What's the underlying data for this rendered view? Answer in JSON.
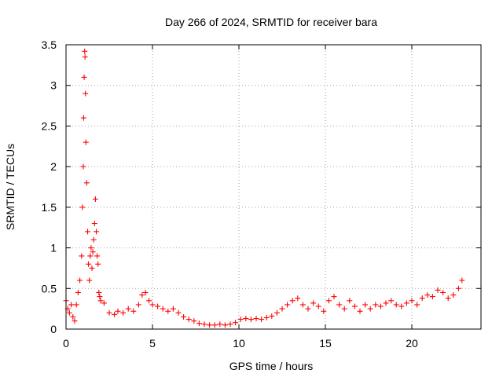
{
  "chart_data": {
    "type": "scatter",
    "title": "Day 266 of 2024, SRMTID for receiver bara",
    "xlabel": "GPS time / hours",
    "ylabel": "SRMTID / TECUs",
    "xlim": [
      0,
      24
    ],
    "ylim": [
      0,
      3.5
    ],
    "x_ticks": [
      0,
      5,
      10,
      15,
      20
    ],
    "x_tick_labels": [
      "0",
      "5",
      "10",
      "15",
      "20"
    ],
    "y_ticks": [
      0,
      0.5,
      1,
      1.5,
      2,
      2.5,
      3,
      3.5
    ],
    "y_tick_labels": [
      "0",
      "0.5",
      "1",
      "1.5",
      "2",
      "2.5",
      "3",
      "3.5"
    ],
    "grid": true,
    "marker": "+",
    "color": "#ff0000",
    "series": [
      {
        "name": "SRMTID",
        "x": [
          0.0,
          0.1,
          0.2,
          0.3,
          0.4,
          0.5,
          0.6,
          0.7,
          0.8,
          0.9,
          0.95,
          1.0,
          1.02,
          1.05,
          1.08,
          1.1,
          1.12,
          1.15,
          1.2,
          1.25,
          1.3,
          1.35,
          1.4,
          1.45,
          1.5,
          1.55,
          1.6,
          1.65,
          1.7,
          1.75,
          1.8,
          1.85,
          1.9,
          1.95,
          2.0,
          2.2,
          2.5,
          2.8,
          3.0,
          3.3,
          3.6,
          3.9,
          4.2,
          4.4,
          4.6,
          4.8,
          5.0,
          5.3,
          5.6,
          5.9,
          6.2,
          6.5,
          6.8,
          7.1,
          7.4,
          7.7,
          8.0,
          8.3,
          8.6,
          8.9,
          9.2,
          9.5,
          9.8,
          10.1,
          10.4,
          10.7,
          11.0,
          11.3,
          11.6,
          11.9,
          12.2,
          12.5,
          12.8,
          13.1,
          13.4,
          13.7,
          14.0,
          14.3,
          14.6,
          14.9,
          15.2,
          15.5,
          15.8,
          16.1,
          16.4,
          16.7,
          17.0,
          17.3,
          17.6,
          17.9,
          18.2,
          18.5,
          18.8,
          19.1,
          19.4,
          19.7,
          20.0,
          20.3,
          20.6,
          20.9,
          21.2,
          21.5,
          21.8,
          22.1,
          22.4,
          22.7,
          22.9
        ],
        "y": [
          0.35,
          0.25,
          0.2,
          0.3,
          0.15,
          0.1,
          0.3,
          0.45,
          0.6,
          0.9,
          1.5,
          2.0,
          2.6,
          3.1,
          3.42,
          3.35,
          2.9,
          2.3,
          1.8,
          1.2,
          0.8,
          0.6,
          0.9,
          1.0,
          0.75,
          0.95,
          1.1,
          1.3,
          1.6,
          1.2,
          0.9,
          0.8,
          0.45,
          0.4,
          0.35,
          0.32,
          0.2,
          0.18,
          0.22,
          0.2,
          0.25,
          0.22,
          0.3,
          0.42,
          0.45,
          0.35,
          0.3,
          0.28,
          0.25,
          0.22,
          0.25,
          0.2,
          0.15,
          0.12,
          0.1,
          0.07,
          0.06,
          0.05,
          0.05,
          0.06,
          0.05,
          0.06,
          0.08,
          0.12,
          0.13,
          0.12,
          0.13,
          0.12,
          0.14,
          0.16,
          0.2,
          0.25,
          0.3,
          0.35,
          0.38,
          0.3,
          0.25,
          0.32,
          0.28,
          0.22,
          0.35,
          0.4,
          0.3,
          0.25,
          0.35,
          0.28,
          0.22,
          0.3,
          0.25,
          0.3,
          0.28,
          0.32,
          0.35,
          0.3,
          0.28,
          0.32,
          0.35,
          0.3,
          0.38,
          0.42,
          0.4,
          0.48,
          0.45,
          0.38,
          0.42,
          0.5,
          0.6
        ]
      }
    ]
  }
}
